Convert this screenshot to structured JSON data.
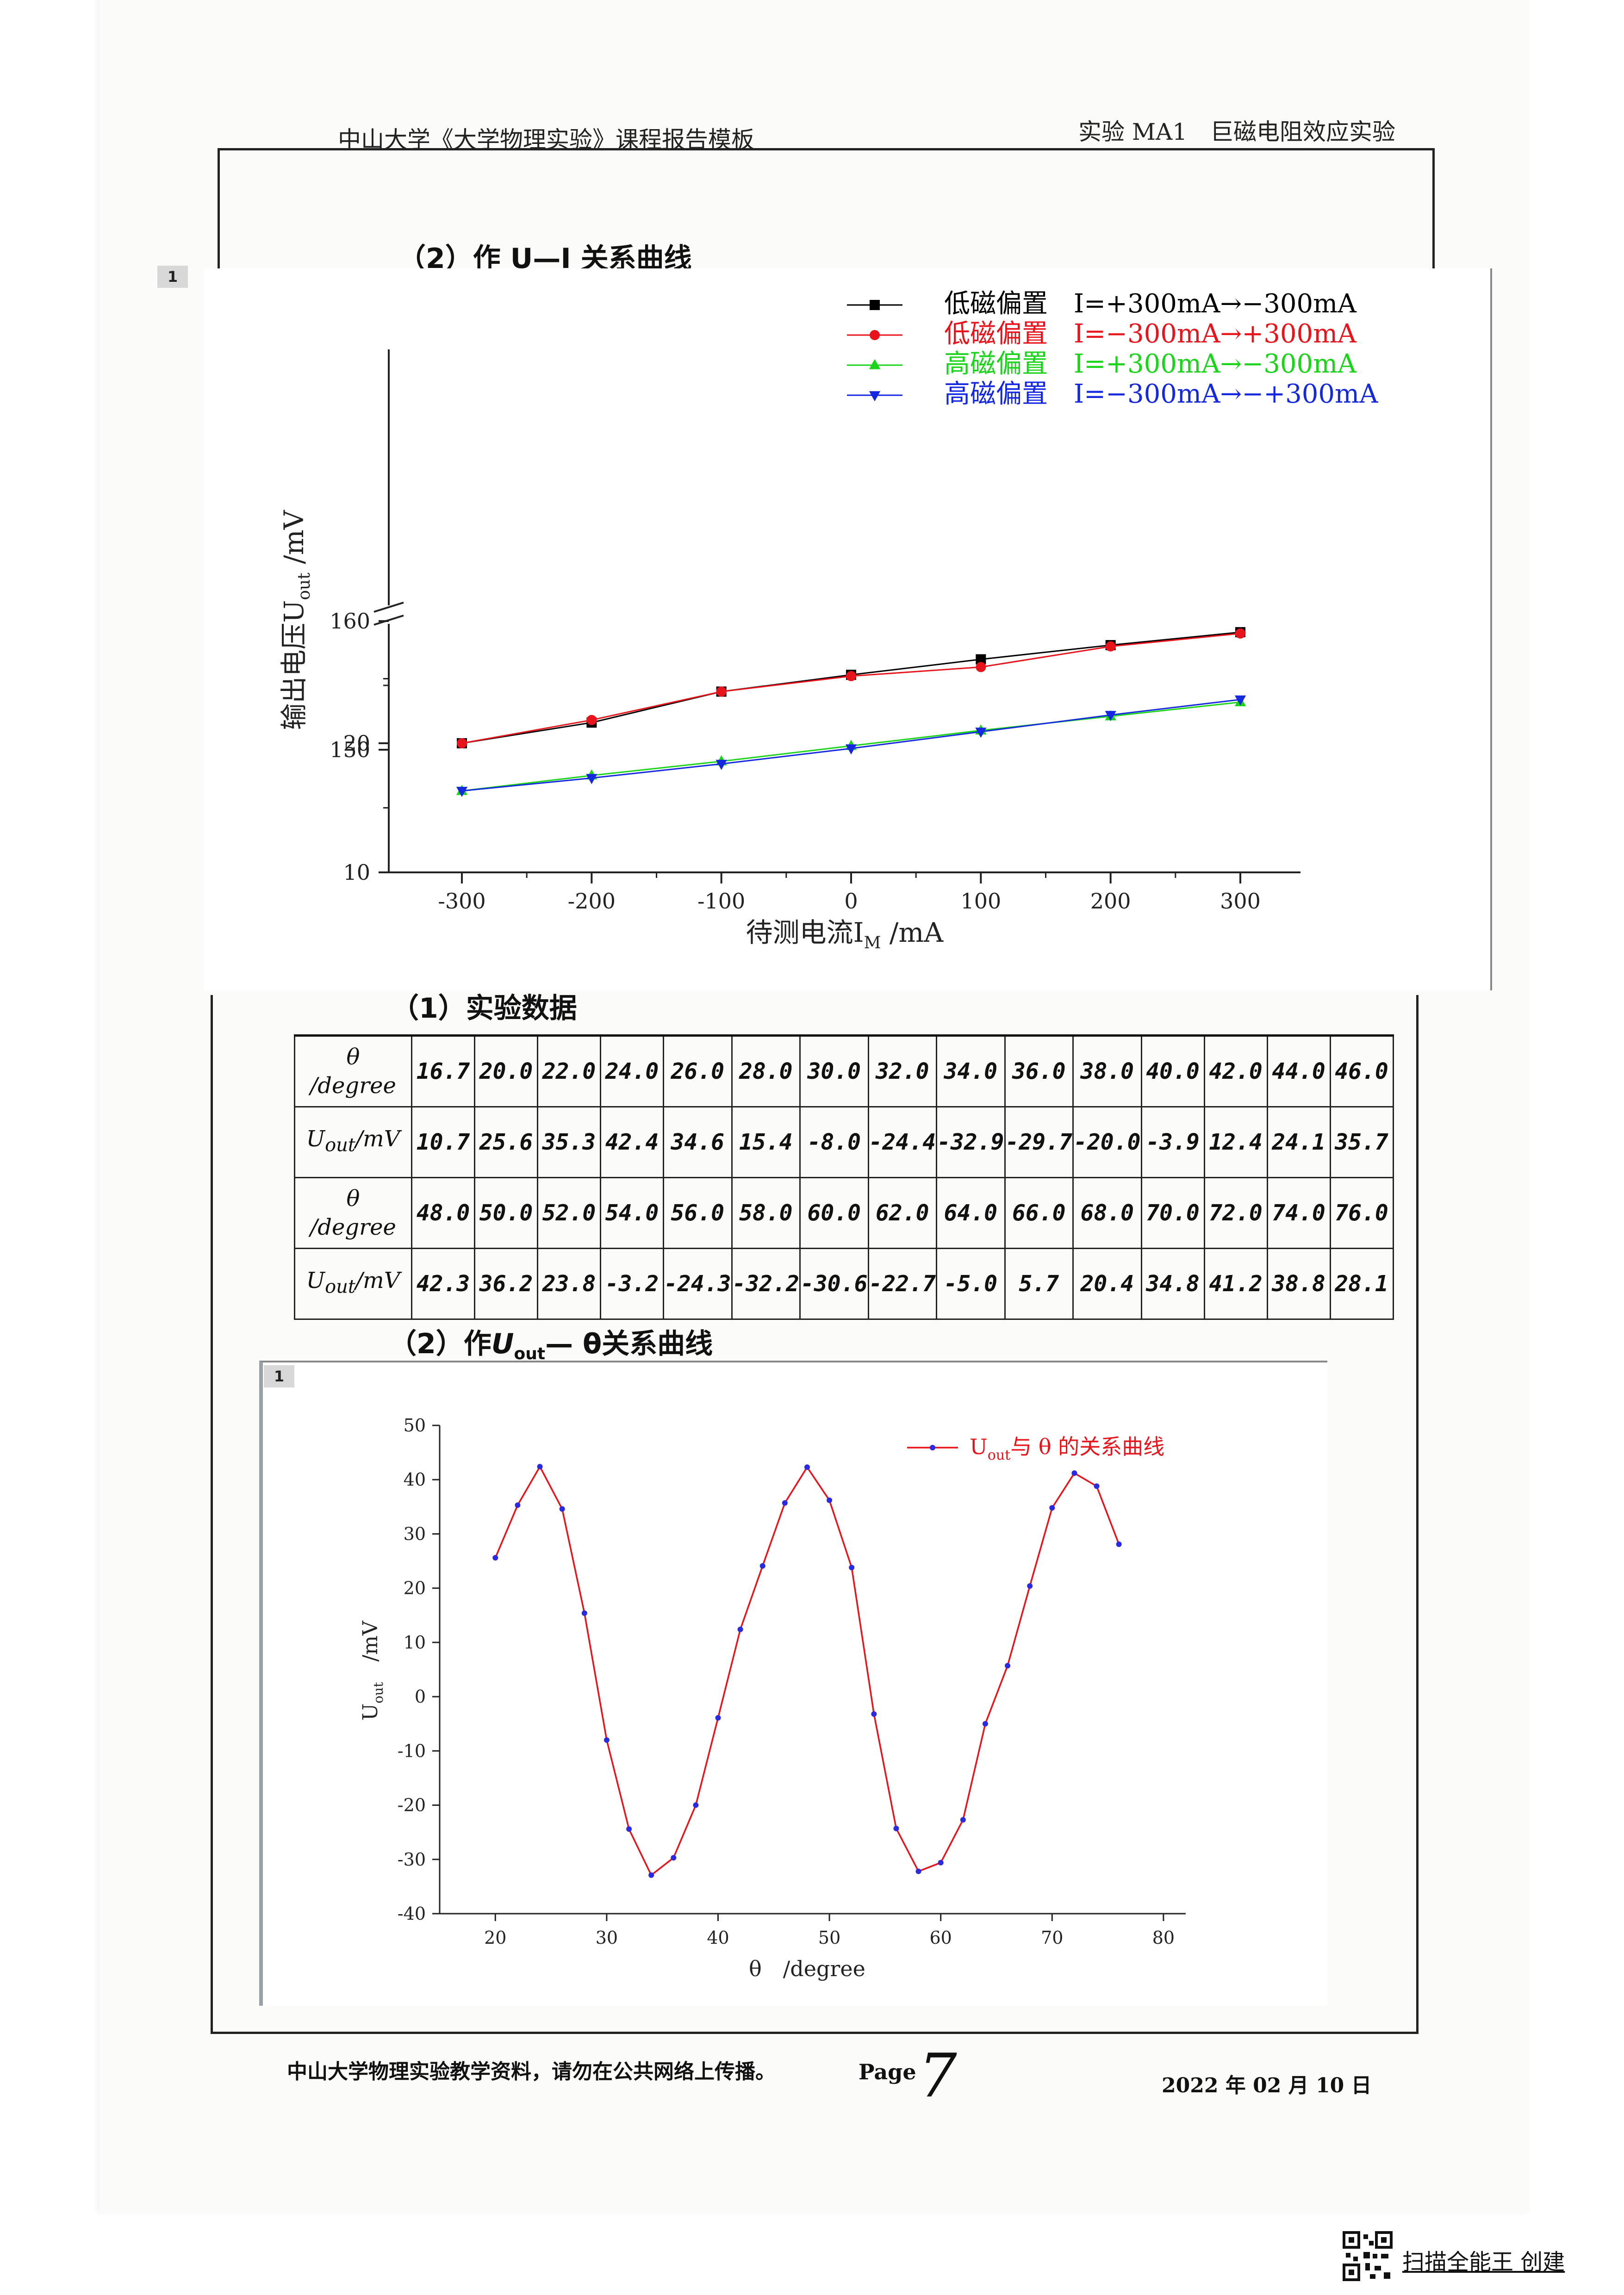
{
  "header": {
    "left": "中山大学《大学物理实验》课程报告模板",
    "right": "实验 MA1　巨磁电阻效应实验"
  },
  "section_ui_title": "（2）作 U—I 关系曲线",
  "section_data_title": "（1）实验数据",
  "section_utheta_title_prefix": "（2）作",
  "section_utheta_title_symbol": "U",
  "section_utheta_title_sub": "out",
  "section_utheta_title_suffix": "— θ关系曲线",
  "badge1": "1",
  "badge2": "1",
  "chart_data": [
    {
      "type": "line",
      "xlabel_main": "待测电流I",
      "xlabel_sub": "M",
      "xlabel_unit": " /mA",
      "ylabel_main": "输出电压U",
      "ylabel_sub": "out",
      "ylabel_unit": " /mV",
      "x_ticks": [
        "-300",
        "-200",
        "-100",
        "0",
        "100",
        "200",
        "300"
      ],
      "y_ticks_lower": [
        "10",
        "20"
      ],
      "y_ticks_upper": [
        "150",
        "160"
      ],
      "axis_break": true,
      "x": [
        -300,
        -200,
        -100,
        0,
        100,
        200,
        300
      ],
      "series": [
        {
          "name": "低磁偏置　I=+300mA→−300mA",
          "color": "#000000",
          "marker": "square",
          "values": [
            20.0,
            21.6,
            24.0,
            25.3,
            26.5,
            27.6,
            28.6
          ]
        },
        {
          "name": "低磁偏置　I=−300mA→+300mA",
          "color": "#e8141c",
          "marker": "circle",
          "values": [
            20.0,
            21.8,
            24.0,
            25.2,
            25.9,
            27.5,
            28.5
          ]
        },
        {
          "name": "高磁偏置　I=+300mA→−300mA",
          "color": "#19d419",
          "marker": "triangle-up",
          "values": [
            146.8,
            148.0,
            149.1,
            150.3,
            151.5,
            152.6,
            153.7
          ]
        },
        {
          "name": "高磁偏置　I=−300mA→−+300mA",
          "color": "#1428e0",
          "marker": "triangle-down",
          "values": [
            146.8,
            147.8,
            148.9,
            150.1,
            151.4,
            152.7,
            153.9
          ]
        }
      ]
    },
    {
      "type": "line",
      "legend_main": "U",
      "legend_sub": "out",
      "legend_rest": "与 θ 的关系曲线",
      "xlabel": "θ　/degree",
      "ylabel_main": "U",
      "ylabel_sub": "out",
      "ylabel_unit": "　/mV",
      "xlim": [
        15,
        82
      ],
      "ylim": [
        -40,
        50
      ],
      "x_ticks": [
        "20",
        "30",
        "40",
        "50",
        "60",
        "70",
        "80"
      ],
      "y_ticks": [
        "-40",
        "-30",
        "-20",
        "-10",
        "0",
        "10",
        "20",
        "30",
        "40",
        "50"
      ],
      "color": "#e8141c",
      "marker_color": "#2a2ae0",
      "x": [
        20,
        22,
        24,
        26,
        28,
        30,
        32,
        34,
        36,
        38,
        40,
        42,
        44,
        46,
        48,
        50,
        52,
        54,
        56,
        58,
        60,
        62,
        64,
        66,
        68,
        70,
        72,
        74,
        76
      ],
      "values": [
        25.6,
        35.3,
        42.4,
        34.6,
        15.4,
        -8.0,
        -24.4,
        -32.9,
        -29.7,
        -20.0,
        -3.9,
        12.4,
        24.1,
        35.7,
        42.3,
        36.2,
        23.8,
        -3.2,
        -24.3,
        -32.2,
        -30.6,
        -22.7,
        -5.0,
        5.7,
        20.4,
        34.8,
        41.2,
        38.8,
        28.1
      ]
    }
  ],
  "table": {
    "row_theta_label_1": "θ",
    "row_theta_label_2": "/degree",
    "row_u_label_main": "U",
    "row_u_label_sub": "out",
    "row_u_label_unit": "/mV",
    "theta_row1": [
      "16.7",
      "20.0",
      "22.0",
      "24.0",
      "26.0",
      "28.0",
      "30.0",
      "32.0",
      "34.0",
      "36.0",
      "38.0",
      "40.0",
      "42.0",
      "44.0",
      "46.0"
    ],
    "u_row1": [
      "10.7",
      "25.6",
      "35.3",
      "42.4",
      "34.6",
      "15.4",
      "-8.0",
      "-24.4",
      "-32.9",
      "-29.7",
      "-20.0",
      "-3.9",
      "12.4",
      "24.1",
      "35.7"
    ],
    "theta_row2": [
      "48.0",
      "50.0",
      "52.0",
      "54.0",
      "56.0",
      "58.0",
      "60.0",
      "62.0",
      "64.0",
      "66.0",
      "68.0",
      "70.0",
      "72.0",
      "74.0",
      "76.0"
    ],
    "u_row2": [
      "42.3",
      "36.2",
      "23.8",
      "-3.2",
      "-24.3",
      "-32.2",
      "-30.6",
      "-22.7",
      "-5.0",
      "5.7",
      "20.4",
      "34.8",
      "41.2",
      "38.8",
      "28.1"
    ]
  },
  "footer": {
    "notice": "中山大学物理实验教学资料，请勿在公共网络上传播。",
    "page_label": "Page",
    "page_number": "7",
    "date": "2022 年 02 月 10 日"
  },
  "watermark": "扫描全能王 创建"
}
